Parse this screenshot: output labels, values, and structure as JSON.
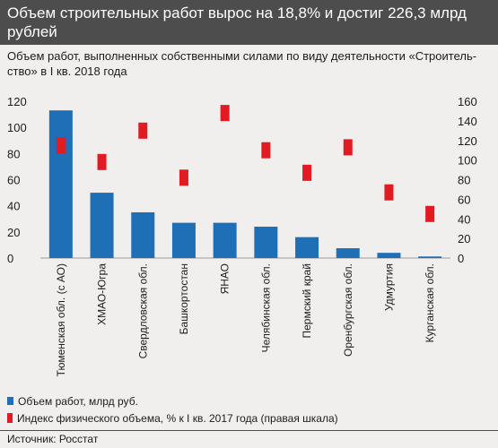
{
  "header": {
    "title": "Объем строительных работ вырос на 18,8% и достиг 226,3 млрд рублей"
  },
  "subtitle": "Объем работ, выполненных собственными силами по виду деятельности «Строитель-ство» в I кв. 2018 года",
  "colors": {
    "bar": "#1f6fb6",
    "marker": "#e21b23",
    "header_bg": "#4d4d4d",
    "background": "#f1efed"
  },
  "chart_data": {
    "type": "bar",
    "categories": [
      "Тюменская обл. (с АО)",
      "ХМАО-Югра",
      "Свердловская обл.",
      "Башкортостан",
      "ЯНАО",
      "Челябинская обл.",
      "Пермский край",
      "Оренбургская обл.",
      "Удмуртия",
      "Курганская обл."
    ],
    "series": [
      {
        "name": "Объем работ, млрд руб.",
        "axis": "left",
        "kind": "bar",
        "values": [
          113,
          50,
          35,
          27,
          27,
          24,
          16,
          7.5,
          4,
          1.2
        ]
      },
      {
        "name": "Индекс физического объема, % к I кв. 2017 года (правая шкала)",
        "axis": "right",
        "kind": "marker",
        "values": [
          115,
          98,
          130,
          82,
          148,
          110,
          87,
          113,
          67,
          45
        ]
      }
    ],
    "ylim_left": [
      0,
      120
    ],
    "yticks_left": [
      0,
      20,
      40,
      60,
      80,
      100,
      120
    ],
    "ylim_right": [
      0,
      160
    ],
    "yticks_right": [
      0,
      20,
      40,
      60,
      80,
      100,
      120,
      140,
      160
    ],
    "grid": false
  },
  "legend": [
    {
      "label": "Объем работ, млрд руб.",
      "kind": "bar"
    },
    {
      "label": "Индекс физического объема, % к I кв. 2017 года (правая шкала)",
      "kind": "marker"
    }
  ],
  "source": "Источник: Росстат"
}
